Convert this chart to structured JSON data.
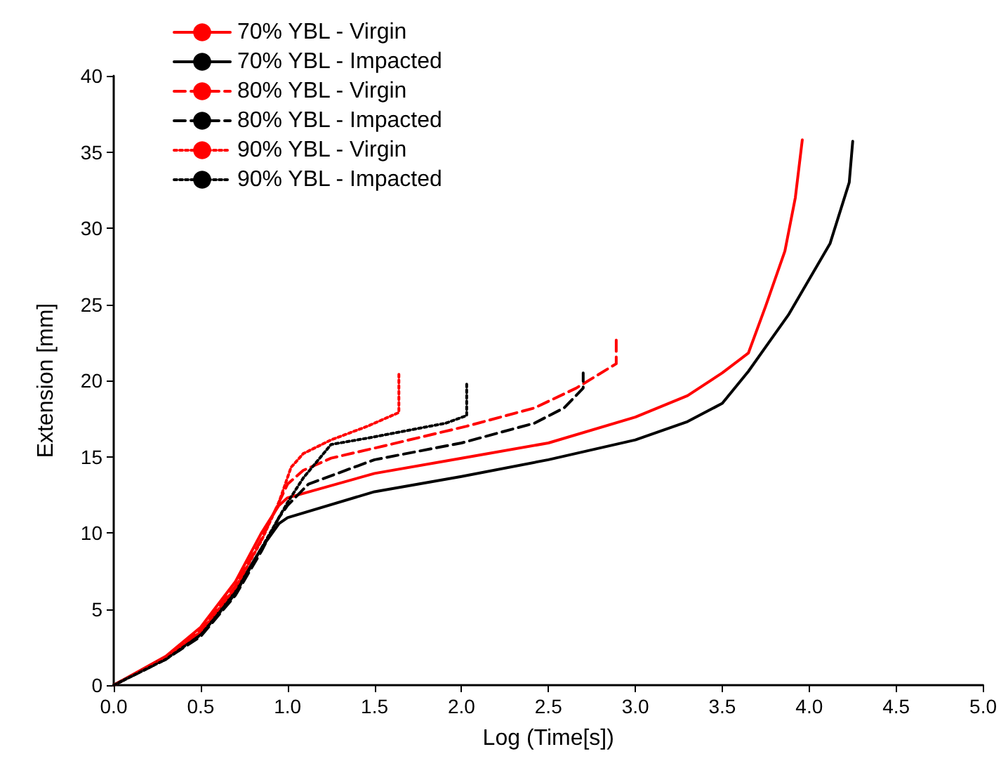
{
  "chart_data": {
    "type": "line",
    "xlabel": "Log (Time[s])",
    "ylabel": "Extension [mm]",
    "xlim": [
      0,
      5
    ],
    "ylim": [
      0,
      40
    ],
    "xticks": [
      {
        "value": 0,
        "label": "0.0"
      },
      0.5,
      {
        "value": 1,
        "label": "1.0"
      },
      1.5,
      {
        "value": 2,
        "label": "2.0"
      },
      2.5,
      {
        "value": 3,
        "label": "3.0"
      },
      3.5,
      {
        "value": 4,
        "label": "4.0"
      },
      4.5,
      {
        "value": 5,
        "label": "5.0"
      }
    ],
    "yticks": [
      0,
      5,
      10,
      15,
      20,
      25,
      30,
      35,
      40
    ],
    "grid": false,
    "legend": "top left",
    "marker": "none",
    "series": [
      {
        "name": "70% YBL - Virgin",
        "color": "#ff0000",
        "line_style": "solid",
        "x": [
          0,
          0.3,
          0.5,
          0.7,
          0.85,
          0.95,
          1.0,
          1.5,
          2.0,
          2.5,
          3.0,
          3.3,
          3.5,
          3.65,
          3.75,
          3.86,
          3.92,
          3.96
        ],
        "values": [
          0,
          1.9,
          3.8,
          6.8,
          10,
          11.8,
          12.3,
          13.9,
          14.9,
          15.9,
          17.6,
          19.0,
          20.5,
          21.8,
          24.9,
          28.5,
          32,
          35.8
        ]
      },
      {
        "name": "70% YBL - Impacted",
        "color": "#000000",
        "line_style": "solid",
        "x": [
          0,
          0.3,
          0.5,
          0.7,
          0.85,
          0.95,
          1.0,
          1.5,
          2.0,
          2.5,
          3.0,
          3.3,
          3.5,
          3.65,
          3.88,
          4.12,
          4.23,
          4.25
        ],
        "values": [
          0,
          1.8,
          3.4,
          6.2,
          9.0,
          10.6,
          11.0,
          12.7,
          13.7,
          14.8,
          16.1,
          17.3,
          18.5,
          20.6,
          24.3,
          29,
          33,
          35.7
        ]
      },
      {
        "name": "80% YBL - Virgin",
        "color": "#ff0000",
        "line_style": "dashed",
        "x": [
          0,
          0.3,
          0.5,
          0.7,
          0.85,
          0.95,
          1.0,
          1.09,
          1.25,
          1.59,
          2.03,
          2.42,
          2.66,
          2.89,
          2.89
        ],
        "values": [
          0,
          1.8,
          3.6,
          6.5,
          9.6,
          12,
          13.2,
          14.1,
          14.9,
          15.8,
          17.0,
          18.2,
          19.5,
          21.1,
          22.9
        ]
      },
      {
        "name": "80% YBL - Impacted",
        "color": "#000000",
        "line_style": "dashed",
        "x": [
          0,
          0.3,
          0.5,
          0.7,
          0.85,
          0.95,
          1.0,
          1.12,
          1.5,
          2.0,
          2.42,
          2.59,
          2.7,
          2.7
        ],
        "values": [
          0,
          1.7,
          3.2,
          5.9,
          8.8,
          11,
          11.8,
          13.2,
          14.8,
          15.9,
          17.2,
          18.2,
          19.5,
          20.5
        ]
      },
      {
        "name": "90% YBL - Virgin",
        "color": "#ff0000",
        "line_style": "dotted",
        "x": [
          0,
          0.3,
          0.5,
          0.7,
          0.85,
          0.95,
          1.02,
          1.09,
          1.25,
          1.46,
          1.64,
          1.64
        ],
        "values": [
          0,
          1.8,
          3.5,
          6.4,
          9.5,
          12,
          14.3,
          15.2,
          16.1,
          17.0,
          17.9,
          20.4
        ]
      },
      {
        "name": "90% YBL - Impacted",
        "color": "#000000",
        "line_style": "dotted",
        "x": [
          0,
          0.3,
          0.5,
          0.7,
          0.85,
          0.95,
          1.0,
          1.09,
          1.25,
          1.5,
          1.91,
          2.03,
          2.03
        ],
        "values": [
          0,
          1.7,
          3.3,
          6.0,
          9,
          11,
          12,
          13.6,
          15.8,
          16.3,
          17.2,
          17.7,
          19.9
        ]
      }
    ]
  }
}
